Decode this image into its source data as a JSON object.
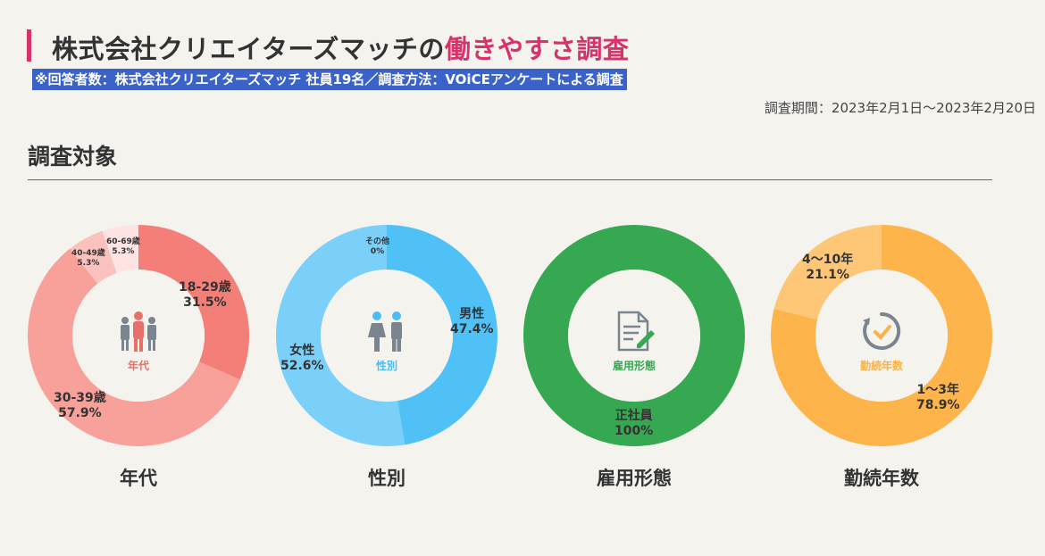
{
  "header": {
    "title_main": "株式会社クリエイターズマッチの",
    "title_accent": "働きやすさ調査",
    "note": "※回答者数：株式会社クリエイターズマッチ 社員19名／調査方法：VOiCEアンケートによる調査",
    "period": "調査期間：2023年2月1日〜2023年2月20日",
    "section": "調査対象"
  },
  "colors": {
    "accent": "#d6336c",
    "note_bg": "#3a63c9"
  },
  "chart_data": [
    {
      "type": "pie",
      "title": "年代",
      "center_label": "年代",
      "center_color": "#e8706a",
      "icon": "people-icon",
      "slices": [
        {
          "label": "18-29歳",
          "value": 31.5,
          "display": "31.5%",
          "color": "#f47f78"
        },
        {
          "label": "30-39歳",
          "value": 57.9,
          "display": "57.9%",
          "color": "#f8a09a"
        },
        {
          "label": "40-49歳",
          "value": 5.3,
          "display": "5.3%",
          "color": "#fbc2bd"
        },
        {
          "label": "60-69歳",
          "value": 5.3,
          "display": "5.3%",
          "color": "#fde3e1"
        }
      ]
    },
    {
      "type": "pie",
      "title": "性別",
      "center_label": "性別",
      "center_color": "#4bbdf5",
      "icon": "gender-icon",
      "slices": [
        {
          "label": "男性",
          "value": 47.4,
          "display": "47.4%",
          "color": "#4fc1f7"
        },
        {
          "label": "女性",
          "value": 52.6,
          "display": "52.6%",
          "color": "#7ad0f9"
        },
        {
          "label": "その他",
          "value": 0,
          "display": "0%",
          "color": "#b8e6fc"
        }
      ]
    },
    {
      "type": "pie",
      "title": "雇用形態",
      "center_label": "雇用形態",
      "center_color": "#36a852",
      "icon": "document-icon",
      "slices": [
        {
          "label": "正社員",
          "value": 100,
          "display": "100%",
          "color": "#36a852"
        }
      ]
    },
    {
      "type": "pie",
      "title": "勤続年数",
      "center_label": "勤続年数",
      "center_color": "#f9b24a",
      "icon": "timer-icon",
      "slices": [
        {
          "label": "1〜3年",
          "value": 78.9,
          "display": "78.9%",
          "color": "#fdb54b"
        },
        {
          "label": "4〜10年",
          "value": 21.1,
          "display": "21.1%",
          "color": "#fec777"
        }
      ]
    }
  ]
}
